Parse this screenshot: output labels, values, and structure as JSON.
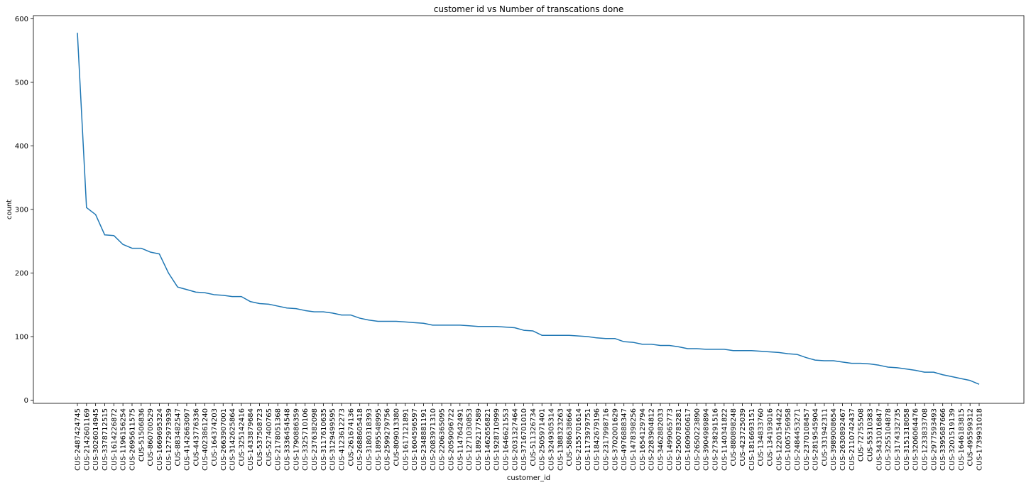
{
  "chart_data": {
    "type": "line",
    "title": "customer id vs Number of transcations done",
    "xlabel": "customer_id",
    "ylabel": "count",
    "ylim": [
      -5,
      605
    ],
    "yticks": [
      0,
      100,
      200,
      300,
      400,
      500,
      600
    ],
    "grid": false,
    "legend": "none",
    "line_color": "#1f77b4",
    "series": [
      {
        "x": [
          "CUS-2487424745",
          "CUS-2142601169",
          "CUS-3026014945",
          "CUS-3378712515",
          "CUS-1614226872",
          "CUS-1196156254",
          "CUS-2695611575",
          "CUS-51506836",
          "CUS-860700529",
          "CUS-1669695324",
          "CUS-1272973939",
          "CUS-883482547",
          "CUS-4142663097",
          "CUS-443776336",
          "CUS-4023861240",
          "CUS-164374203",
          "CUS-2663907001",
          "CUS-3142625864",
          "CUS-325142416",
          "CUS-1433879684",
          "CUS-537508723",
          "CUS-527400765",
          "CUS-2178051368",
          "CUS-3336454548",
          "CUS-1790886359",
          "CUS-3325710106",
          "CUS-2376382098",
          "CUS-3117610635",
          "CUS-3129499595",
          "CUS-4123612273",
          "CUS-261674136",
          "CUS-2688605418",
          "CUS-3180318393",
          "CUS-1895548995",
          "CUS-2599279756",
          "CUS-809013380",
          "CUS-1617121891",
          "CUS-1604596597",
          "CUS-2348881191",
          "CUS-2083971310",
          "CUS-2206365095",
          "CUS-2059096722",
          "CUS-1147642491",
          "CUS-1271030853",
          "CUS-1892177589",
          "CUS-1462656821",
          "CUS-1928710999",
          "CUS-1646621553",
          "CUS-2031327464",
          "CUS-3716701010",
          "CUS-511326734",
          "CUS-2505971401",
          "CUS-3249305314",
          "CUS-1388323263",
          "CUS-586638664",
          "CUS-2155701614",
          "CUS-1173979751",
          "CUS-1842679196",
          "CUS-2317998716",
          "CUS-3702001629",
          "CUS-4976888347",
          "CUS-1478398256",
          "CUS-1654129794",
          "CUS-2283904812",
          "CUS-3462882033",
          "CUS-1499065773",
          "CUS-2500783281",
          "CUS-1609060617",
          "CUS-2650223890",
          "CUS-3904989894",
          "CUS-2738291516",
          "CUS-1140341822",
          "CUS-880898248",
          "CUS-423725039",
          "CUS-1816693151",
          "CUS-134833760",
          "CUS-134193016",
          "CUS-1220154422",
          "CUS-1005756958",
          "CUS-2484453271",
          "CUS-2370108457",
          "CUS-2819545904",
          "CUS-331942311",
          "CUS-3989008654",
          "CUS-2630892467",
          "CUS-2110742437",
          "CUS-72755508",
          "CUS-55310383",
          "CUS-3431016847",
          "CUS-3255104878",
          "CUS-3174332735",
          "CUS-3151318058",
          "CUS-3206064476",
          "CUS-1233833708",
          "CUS-2977593493",
          "CUS-3395687666",
          "CUS-3201519139",
          "CUS-1646183815",
          "CUS-495599312",
          "CUS-1739931018"
        ],
        "y": [
          578,
          303,
          292,
          260,
          259,
          245,
          239,
          239,
          233,
          230,
          200,
          178,
          174,
          170,
          169,
          166,
          165,
          163,
          163,
          155,
          152,
          151,
          148,
          145,
          144,
          141,
          139,
          139,
          137,
          134,
          134,
          129,
          126,
          124,
          124,
          124,
          123,
          122,
          121,
          118,
          118,
          118,
          118,
          117,
          116,
          116,
          116,
          115,
          114,
          110,
          109,
          102,
          102,
          102,
          102,
          101,
          100,
          98,
          97,
          97,
          92,
          91,
          88,
          88,
          86,
          86,
          84,
          81,
          81,
          80,
          80,
          80,
          78,
          78,
          78,
          77,
          76,
          75,
          73,
          72,
          67,
          63,
          62,
          62,
          60,
          58,
          58,
          57,
          55,
          52,
          51,
          49,
          47,
          44,
          44,
          40,
          37,
          34,
          31,
          25
        ]
      }
    ]
  }
}
